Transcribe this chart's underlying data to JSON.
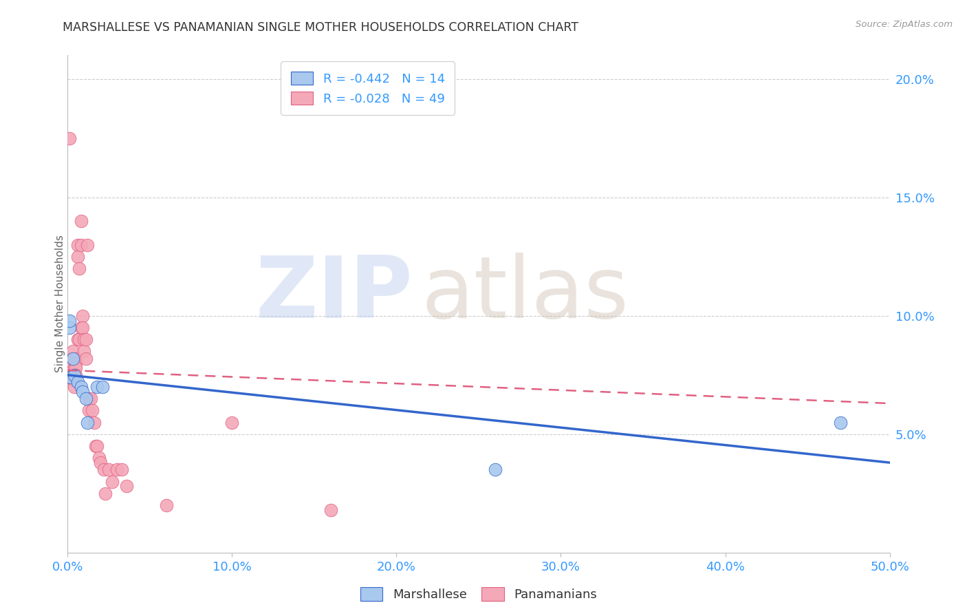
{
  "title": "MARSHALLESE VS PANAMANIAN SINGLE MOTHER HOUSEHOLDS CORRELATION CHART",
  "source": "Source: ZipAtlas.com",
  "ylabel": "Single Mother Households",
  "xlim": [
    0.0,
    0.5
  ],
  "ylim": [
    0.0,
    0.21
  ],
  "x_ticks": [
    0.0,
    0.1,
    0.2,
    0.3,
    0.4,
    0.5
  ],
  "x_tick_labels": [
    "0.0%",
    "10.0%",
    "20.0%",
    "30.0%",
    "40.0%",
    "50.0%"
  ],
  "y_ticks_right": [
    0.05,
    0.1,
    0.15,
    0.2
  ],
  "y_tick_labels_right": [
    "5.0%",
    "10.0%",
    "15.0%",
    "20.0%"
  ],
  "marshallese_color": "#A8C8EE",
  "panamanian_color": "#F4A8B8",
  "marshallese_line_color": "#3366CC",
  "panamanian_line_color": "#E06080",
  "marshallese_R": -0.442,
  "marshallese_N": 14,
  "panamanian_R": -0.028,
  "panamanian_N": 49,
  "legend_label_marshallese": "Marshallese",
  "legend_label_panamanian": "Panamanians",
  "marshallese_x": [
    0.001,
    0.001,
    0.002,
    0.003,
    0.004,
    0.006,
    0.008,
    0.009,
    0.011,
    0.012,
    0.018,
    0.021,
    0.26,
    0.47
  ],
  "marshallese_y": [
    0.095,
    0.098,
    0.074,
    0.082,
    0.075,
    0.072,
    0.07,
    0.068,
    0.065,
    0.055,
    0.07,
    0.07,
    0.035,
    0.055
  ],
  "panamanian_x": [
    0.001,
    0.001,
    0.001,
    0.002,
    0.002,
    0.003,
    0.003,
    0.003,
    0.004,
    0.004,
    0.004,
    0.005,
    0.005,
    0.005,
    0.005,
    0.006,
    0.006,
    0.006,
    0.007,
    0.007,
    0.008,
    0.008,
    0.008,
    0.009,
    0.009,
    0.01,
    0.01,
    0.011,
    0.011,
    0.012,
    0.013,
    0.013,
    0.014,
    0.015,
    0.016,
    0.017,
    0.018,
    0.019,
    0.02,
    0.022,
    0.023,
    0.025,
    0.027,
    0.03,
    0.033,
    0.036,
    0.06,
    0.1,
    0.16
  ],
  "panamanian_y": [
    0.175,
    0.082,
    0.079,
    0.078,
    0.076,
    0.085,
    0.075,
    0.073,
    0.078,
    0.073,
    0.07,
    0.082,
    0.08,
    0.078,
    0.075,
    0.13,
    0.125,
    0.09,
    0.12,
    0.09,
    0.14,
    0.13,
    0.095,
    0.1,
    0.095,
    0.09,
    0.085,
    0.09,
    0.082,
    0.13,
    0.065,
    0.06,
    0.065,
    0.06,
    0.055,
    0.045,
    0.045,
    0.04,
    0.038,
    0.035,
    0.025,
    0.035,
    0.03,
    0.035,
    0.035,
    0.028,
    0.02,
    0.055,
    0.018
  ],
  "blue_line_x0": 0.0,
  "blue_line_x1": 0.5,
  "blue_line_y0": 0.075,
  "blue_line_y1": 0.038,
  "pink_line_x0": 0.0,
  "pink_line_x1": 0.5,
  "pink_line_y0": 0.077,
  "pink_line_y1": 0.063
}
